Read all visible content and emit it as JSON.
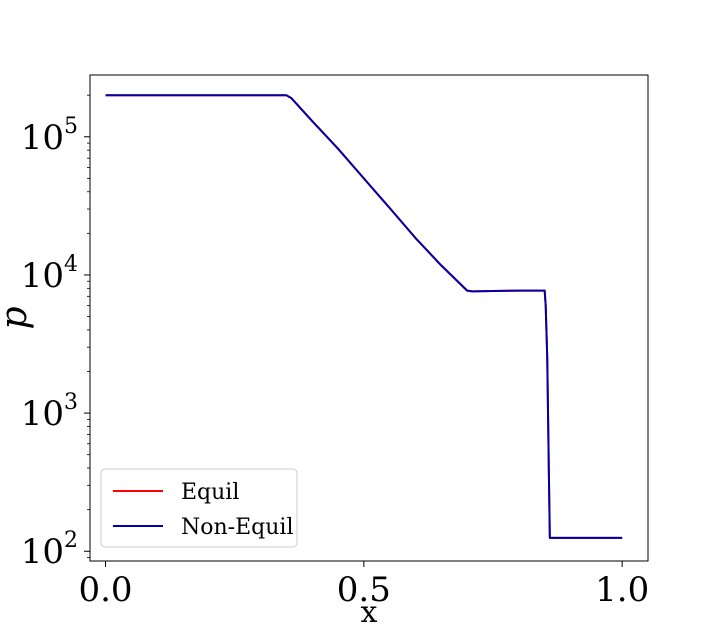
{
  "chart_data": {
    "type": "line",
    "xlabel": "x",
    "ylabel": "p",
    "xlim": [
      -0.03,
      1.05
    ],
    "ylim": [
      85,
      280000
    ],
    "yscale": "log",
    "grid": false,
    "legend_position": "bottom-left",
    "xticks": [
      {
        "value": 0.0,
        "label": "0.0"
      },
      {
        "value": 0.5,
        "label": "0.5"
      },
      {
        "value": 1.0,
        "label": "1.0"
      }
    ],
    "yticks": [
      {
        "value": 100,
        "base": "10",
        "exp": "2"
      },
      {
        "value": 1000,
        "base": "10",
        "exp": "3"
      },
      {
        "value": 10000,
        "base": "10",
        "exp": "4"
      },
      {
        "value": 100000,
        "base": "10",
        "exp": "5"
      }
    ],
    "series": [
      {
        "name": "Equil",
        "color": "#ff0000",
        "x": [
          0.0,
          0.35,
          0.36,
          0.4,
          0.45,
          0.5,
          0.55,
          0.6,
          0.65,
          0.7,
          0.71,
          0.75,
          0.8,
          0.85,
          0.852,
          0.855,
          0.858,
          0.86,
          0.9,
          0.95,
          1.0
        ],
        "y": [
          200000,
          200000,
          190000,
          130000,
          82000,
          50000,
          30500,
          18500,
          11700,
          7700,
          7600,
          7650,
          7700,
          7700,
          6000,
          2500,
          400,
          125,
          125,
          125,
          125
        ]
      },
      {
        "name": "Non-Equil",
        "color": "#0000aa",
        "x": [
          0.0,
          0.35,
          0.36,
          0.4,
          0.45,
          0.5,
          0.55,
          0.6,
          0.65,
          0.7,
          0.71,
          0.75,
          0.8,
          0.85,
          0.852,
          0.855,
          0.858,
          0.86,
          0.9,
          0.95,
          1.0
        ],
        "y": [
          200000,
          200000,
          190000,
          130000,
          82000,
          50000,
          30500,
          18500,
          11700,
          7700,
          7600,
          7650,
          7700,
          7700,
          6000,
          2500,
          400,
          125,
          125,
          125,
          125
        ]
      }
    ]
  }
}
